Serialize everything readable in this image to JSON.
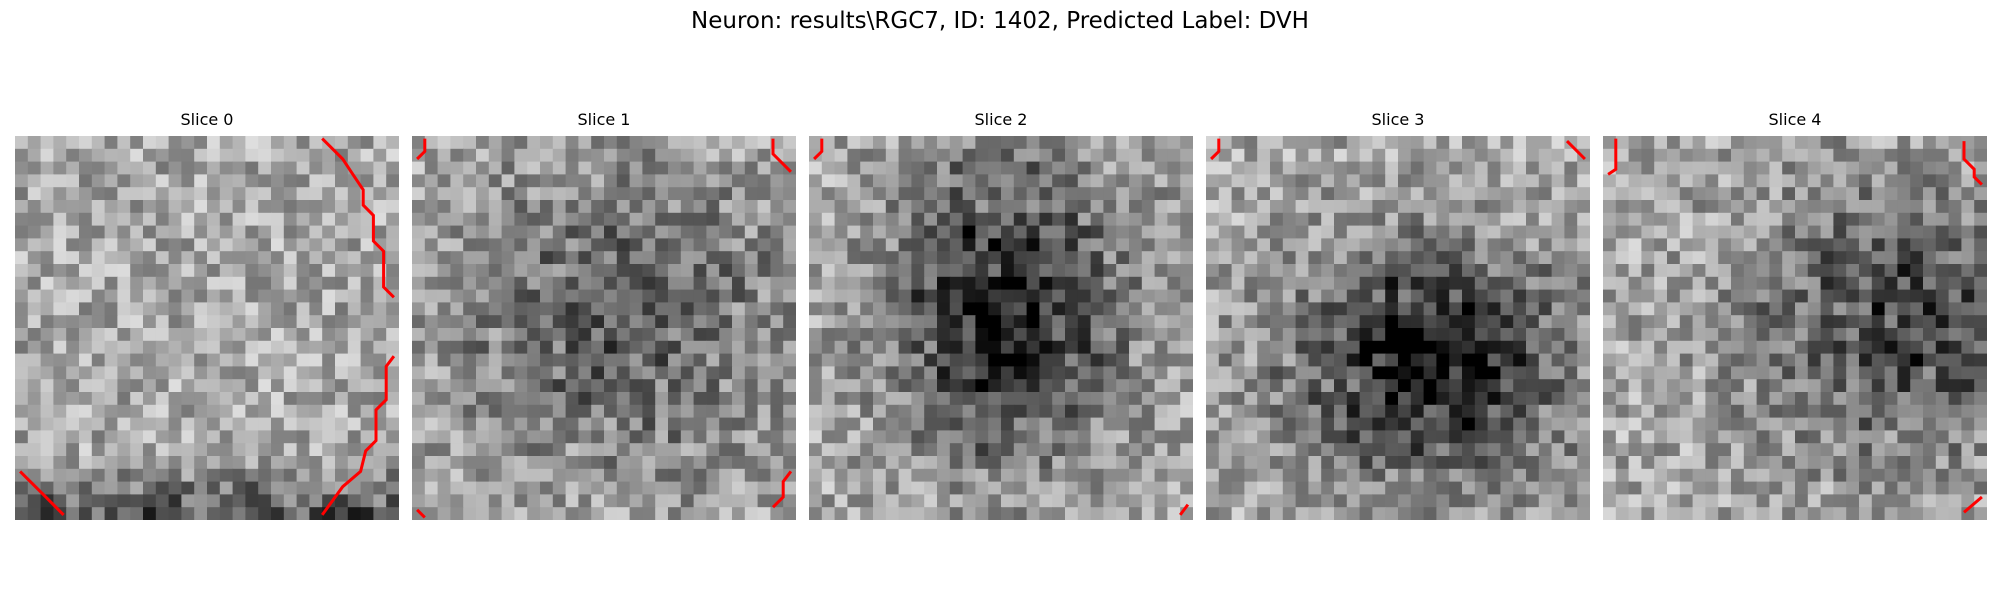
{
  "title": "Neuron: results\\RGC7, ID: 1402, Predicted Label: DVH",
  "contour_color": "#ff0000",
  "slices": [
    {
      "label": "Slice 0",
      "blob": null,
      "edge_dark": "bottom"
    },
    {
      "label": "Slice 1",
      "blob": "faint-center"
    },
    {
      "label": "Slice 2",
      "blob": "dark-center"
    },
    {
      "label": "Slice 3",
      "blob": "dark-lower-center"
    },
    {
      "label": "Slice 4",
      "blob": "dark-right"
    }
  ]
}
